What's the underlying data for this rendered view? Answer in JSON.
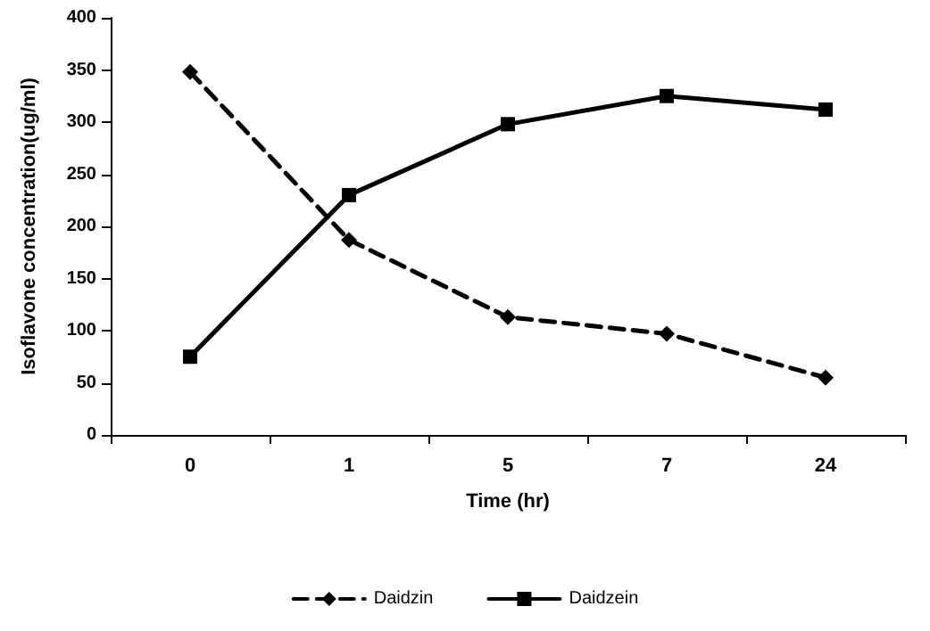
{
  "chart_data": {
    "type": "line",
    "xlabel": "Time (hr)",
    "ylabel": "Isoflavone concentration(ug/ml)",
    "categories": [
      "0",
      "1",
      "5",
      "7",
      "24"
    ],
    "series": [
      {
        "name": "Daidzin",
        "color": "#000000",
        "values": [
          348,
          187,
          113,
          97,
          55
        ],
        "marker": "diamond",
        "line_style": "dashed"
      },
      {
        "name": "Daidzein",
        "color": "#000000",
        "values": [
          75,
          230,
          298,
          325,
          312
        ],
        "marker": "square",
        "line_style": "solid"
      }
    ],
    "ylim": [
      0,
      400
    ],
    "yticks": [
      0,
      50,
      100,
      150,
      200,
      250,
      300,
      350,
      400
    ],
    "grid": false,
    "legend": "bottom"
  }
}
